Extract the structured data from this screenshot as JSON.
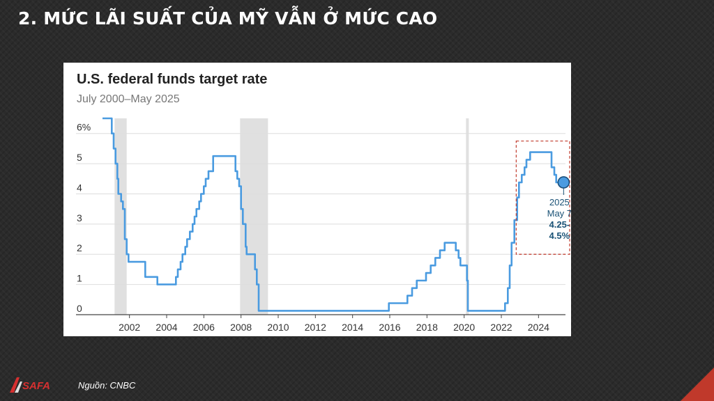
{
  "slide": {
    "title": "2. MỨC LÃI SUẤT CỦA MỸ VẪN Ở MỨC CAO",
    "source": "Nguồn: CNBC",
    "logo_text": "SAFA"
  },
  "colors": {
    "line": "#4a9be0",
    "recession_band": "#e0e0e0",
    "highlight_box": "#c0392b",
    "marker_fill": "#4a9be0",
    "annotation_text": "#1a5276"
  },
  "chart_data": {
    "type": "line",
    "title": "U.S. federal funds target rate",
    "subtitle": "July 2000–May 2025",
    "xlabel": "",
    "ylabel": "",
    "xlim": [
      2000.55,
      2025.45
    ],
    "ylim": [
      0,
      6.5
    ],
    "x_ticks": [
      2002,
      2004,
      2006,
      2008,
      2010,
      2012,
      2014,
      2016,
      2018,
      2020,
      2022,
      2024
    ],
    "y_ticks": [
      {
        "value": 0,
        "label": "0"
      },
      {
        "value": 1,
        "label": "1"
      },
      {
        "value": 2,
        "label": "2"
      },
      {
        "value": 3,
        "label": "3"
      },
      {
        "value": 4,
        "label": "4"
      },
      {
        "value": 5,
        "label": "5"
      },
      {
        "value": 6,
        "label": "6%"
      }
    ],
    "grid": true,
    "recessions": [
      [
        2001.2,
        2001.85
      ],
      [
        2007.95,
        2009.45
      ],
      [
        2020.1,
        2020.25
      ]
    ],
    "series": [
      {
        "x": [
          2000.55,
          2001.0,
          2001.05,
          2001.15,
          2001.25,
          2001.35,
          2001.4,
          2001.55,
          2001.65,
          2001.75,
          2001.85,
          2001.95,
          2002.85,
          2003.5,
          2004.5,
          2004.6,
          2004.75,
          2004.85,
          2005.0,
          2005.1,
          2005.25,
          2005.4,
          2005.5,
          2005.6,
          2005.75,
          2005.85,
          2006.0,
          2006.1,
          2006.25,
          2006.5,
          2007.7,
          2007.8,
          2007.9,
          2008.0,
          2008.1,
          2008.25,
          2008.3,
          2008.75,
          2008.85,
          2008.95,
          2015.95,
          2016.95,
          2017.2,
          2017.45,
          2017.95,
          2018.2,
          2018.45,
          2018.7,
          2018.95,
          2019.55,
          2019.7,
          2019.8,
          2020.15,
          2020.2,
          2022.2,
          2022.35,
          2022.45,
          2022.55,
          2022.7,
          2022.85,
          2022.95,
          2023.1,
          2023.25,
          2023.35,
          2023.55,
          2024.7,
          2024.85,
          2024.95,
          2025.35
        ],
        "y": [
          6.5,
          6.5,
          6.0,
          5.5,
          5.0,
          4.5,
          4.0,
          3.75,
          3.5,
          2.5,
          2.0,
          1.75,
          1.25,
          1.0,
          1.25,
          1.5,
          1.75,
          2.0,
          2.25,
          2.5,
          2.75,
          3.0,
          3.25,
          3.5,
          3.75,
          4.0,
          4.25,
          4.5,
          4.75,
          5.25,
          4.75,
          4.5,
          4.25,
          3.5,
          3.0,
          2.25,
          2.0,
          1.5,
          1.0,
          0.13,
          0.38,
          0.63,
          0.88,
          1.13,
          1.38,
          1.63,
          1.88,
          2.13,
          2.38,
          2.13,
          1.88,
          1.63,
          1.13,
          0.13,
          0.38,
          0.88,
          1.63,
          2.38,
          3.13,
          3.88,
          4.38,
          4.63,
          4.88,
          5.13,
          5.38,
          4.88,
          4.63,
          4.38,
          4.38
        ]
      }
    ],
    "annotation": {
      "x": 2025.35,
      "y": 4.38,
      "year": "2025",
      "date": "May 7",
      "value_line1": "4.25-",
      "value_line2": "4.5%"
    },
    "highlight_box": {
      "x_range": [
        2022.8,
        2025.9
      ],
      "y_range": [
        2.0,
        5.75
      ]
    }
  }
}
